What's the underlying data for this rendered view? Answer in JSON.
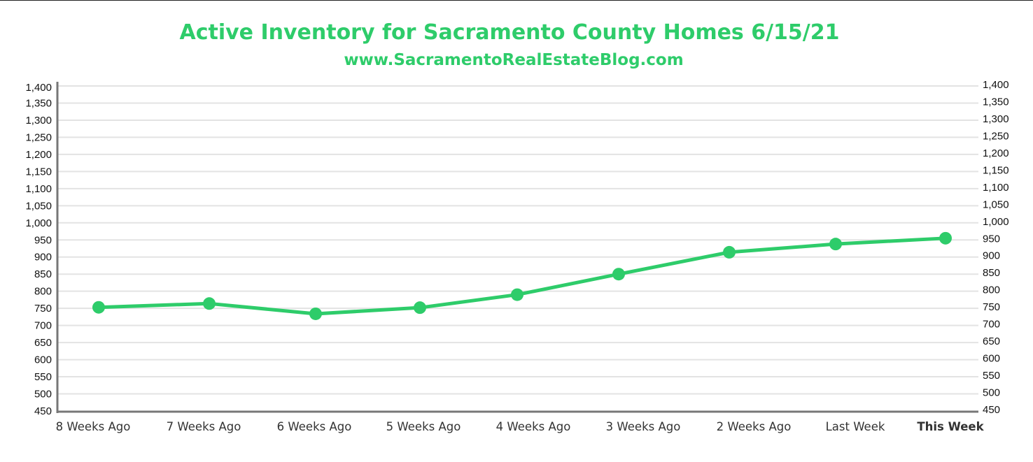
{
  "chart_data": {
    "type": "line",
    "title": "Active Inventory for Sacramento County Homes 6/15/21",
    "subtitle": "www.SacramentoRealEstateBlog.com",
    "xlabel": "",
    "ylabel": "",
    "categories": [
      "8 Weeks Ago",
      "7 Weeks Ago",
      "6 Weeks Ago",
      "5 Weeks Ago",
      "4 Weeks Ago",
      "3 Weeks Ago",
      "2 Weeks Ago",
      "Last Week",
      "This Week"
    ],
    "highlight_category": "This Week",
    "series": [
      {
        "name": "Active Inventory",
        "values": [
          753,
          764,
          734,
          752,
          790,
          850,
          914,
          938,
          955
        ]
      }
    ],
    "ylim": [
      450,
      1400
    ],
    "y_ticks": [
      "450",
      "500",
      "550",
      "600",
      "650",
      "700",
      "750",
      "800",
      "850",
      "900",
      "950",
      "1,000",
      "1,050",
      "1,100",
      "1,150",
      "1,200",
      "1,250",
      "1,300",
      "1,350",
      "1,400"
    ],
    "y_tick_values": [
      450,
      500,
      550,
      600,
      650,
      700,
      750,
      800,
      850,
      900,
      950,
      1000,
      1050,
      1100,
      1150,
      1200,
      1250,
      1300,
      1350,
      1400
    ],
    "grid": true,
    "dual_y_axis": true,
    "colors": {
      "line": "#2ecc6a",
      "grid": "#e3e3e3",
      "axis": "#777777",
      "title": "#2ecc6a"
    }
  }
}
